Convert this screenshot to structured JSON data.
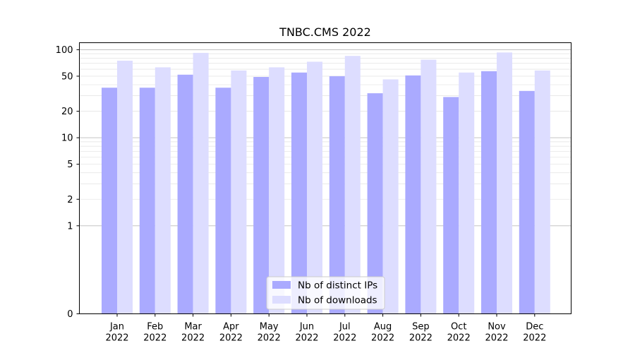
{
  "chart_data": {
    "type": "bar",
    "title": "TNBC.CMS 2022",
    "xlabel": "",
    "ylabel": "",
    "yscale": "symlog",
    "ylim": [
      0,
      120
    ],
    "yticks": [
      0,
      1,
      2,
      5,
      10,
      20,
      50,
      100
    ],
    "grid": true,
    "legend_position": "bottom-center",
    "categories": [
      [
        "Jan",
        "2022"
      ],
      [
        "Feb",
        "2022"
      ],
      [
        "Mar",
        "2022"
      ],
      [
        "Apr",
        "2022"
      ],
      [
        "May",
        "2022"
      ],
      [
        "Jun",
        "2022"
      ],
      [
        "Jul",
        "2022"
      ],
      [
        "Aug",
        "2022"
      ],
      [
        "Sep",
        "2022"
      ],
      [
        "Oct",
        "2022"
      ],
      [
        "Nov",
        "2022"
      ],
      [
        "Dec",
        "2022"
      ]
    ],
    "series": [
      {
        "name": "Nb of distinct IPs",
        "color": "#aaaaff",
        "values": [
          37,
          37,
          52,
          37,
          49,
          55,
          50,
          32,
          51,
          29,
          57,
          34
        ]
      },
      {
        "name": "Nb of downloads",
        "color": "#ddddff",
        "values": [
          75,
          63,
          92,
          58,
          63,
          73,
          85,
          46,
          77,
          55,
          93,
          58
        ]
      }
    ]
  }
}
